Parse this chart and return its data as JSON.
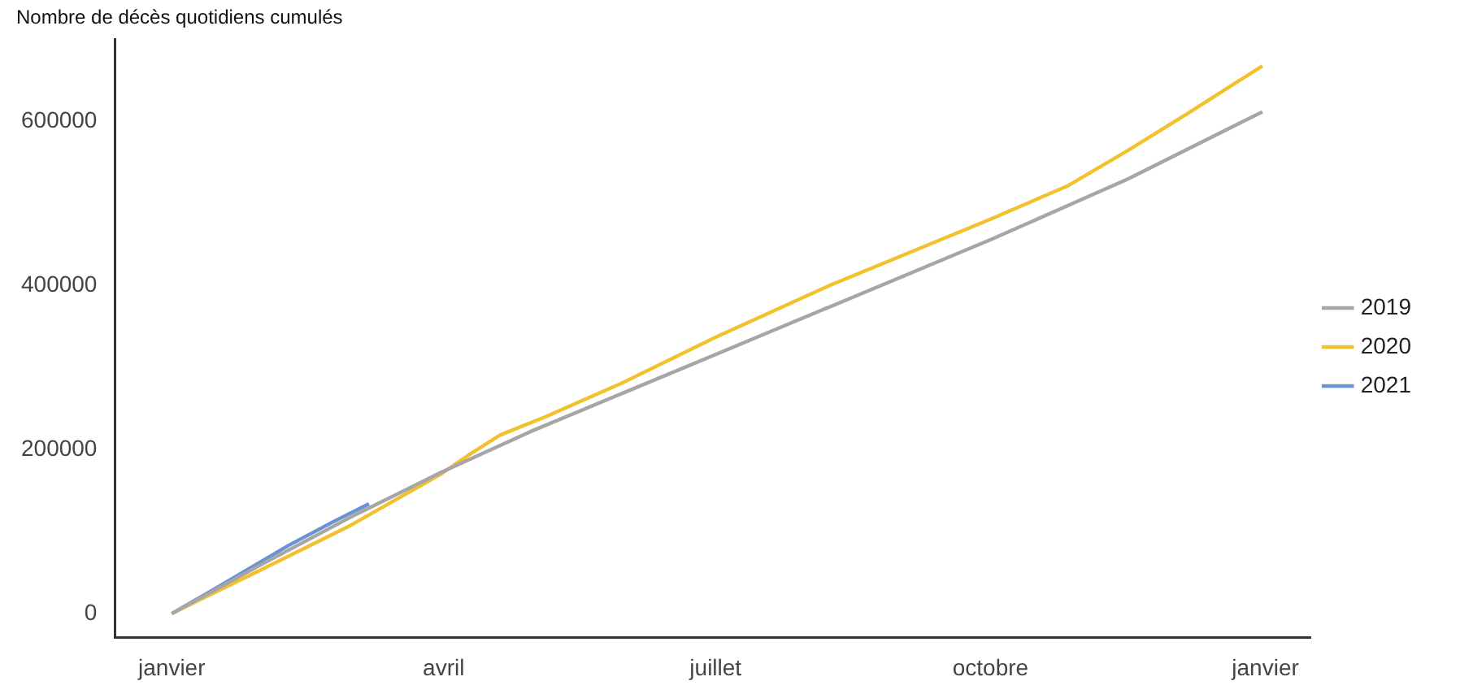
{
  "chart_data": {
    "type": "line",
    "title": "Nombre de décès quotidiens cumulés",
    "xlim": [
      "2019-12-13",
      "2021-01-16"
    ],
    "xticks": [
      {
        "value": "2020-01-01",
        "label": "janvier"
      },
      {
        "value": "2020-04-01",
        "label": "avril"
      },
      {
        "value": "2020-07-01",
        "label": "juillet"
      },
      {
        "value": "2020-10-01",
        "label": "octobre"
      },
      {
        "value": "2021-01-01",
        "label": "janvier"
      }
    ],
    "ylim": [
      -29000,
      700000
    ],
    "yticks": [
      0,
      200000,
      400000,
      600000
    ],
    "grid": false,
    "legend": "right",
    "marker": "none",
    "line_style": "solid",
    "series": [
      {
        "name": "2019",
        "color": "#a6a6a6",
        "x": [
          "2020-01-01",
          "2020-01-30",
          "2020-03-01",
          "2020-03-31",
          "2020-04-30",
          "2020-07-01",
          "2020-10-01",
          "2020-11-16",
          "2020-12-31"
        ],
        "values": [
          0,
          58000,
          118000,
          172000,
          222000,
          316000,
          456000,
          530000,
          612000
        ]
      },
      {
        "name": "2020",
        "color": "#f2c12e",
        "x": [
          "2020-01-01",
          "2020-01-30",
          "2020-03-01",
          "2020-03-31",
          "2020-04-10",
          "2020-04-20",
          "2020-05-05",
          "2020-05-30",
          "2020-07-01",
          "2020-08-08",
          "2020-10-01",
          "2020-10-27",
          "2020-11-16",
          "2020-12-06",
          "2020-12-31"
        ],
        "values": [
          0,
          52000,
          108000,
          170000,
          195000,
          218000,
          240000,
          280000,
          337000,
          400000,
          481000,
          522000,
          565000,
          610000,
          668000
        ]
      },
      {
        "name": "2021",
        "color": "#6a93d4",
        "x": [
          "2020-01-01",
          "2020-01-20",
          "2020-02-09",
          "2020-02-24",
          "2020-03-07"
        ],
        "values": [
          0,
          40000,
          83000,
          112000,
          134000
        ]
      }
    ]
  }
}
